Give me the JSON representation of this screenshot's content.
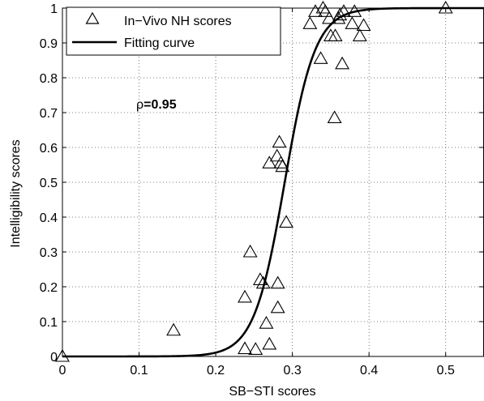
{
  "chart_data": {
    "type": "scatter",
    "xlabel": "SB−STI scores",
    "ylabel": "Intelligibility scores",
    "xlim": [
      0,
      0.55
    ],
    "ylim": [
      0,
      1
    ],
    "x_ticks": [
      "0",
      "0.1",
      "0.2",
      "0.3",
      "0.4",
      "0.5"
    ],
    "y_ticks": [
      "0",
      "0.1",
      "0.2",
      "0.3",
      "0.4",
      "0.5",
      "0.6",
      "0.7",
      "0.8",
      "0.9",
      "1"
    ],
    "grid": true,
    "legend_position": "top-left",
    "annotation": {
      "prefix": "ρ",
      "value": "=0.95"
    },
    "series": [
      {
        "name": "In−Vivo NH scores",
        "marker": "triangle-open",
        "points": [
          {
            "x": 0.0,
            "y": 0.0
          },
          {
            "x": 0.145,
            "y": 0.075
          },
          {
            "x": 0.238,
            "y": 0.022
          },
          {
            "x": 0.238,
            "y": 0.17
          },
          {
            "x": 0.245,
            "y": 0.3
          },
          {
            "x": 0.252,
            "y": 0.02
          },
          {
            "x": 0.258,
            "y": 0.22
          },
          {
            "x": 0.262,
            "y": 0.21
          },
          {
            "x": 0.266,
            "y": 0.095
          },
          {
            "x": 0.27,
            "y": 0.035
          },
          {
            "x": 0.27,
            "y": 0.555
          },
          {
            "x": 0.28,
            "y": 0.575
          },
          {
            "x": 0.281,
            "y": 0.21
          },
          {
            "x": 0.281,
            "y": 0.14
          },
          {
            "x": 0.283,
            "y": 0.615
          },
          {
            "x": 0.285,
            "y": 0.555
          },
          {
            "x": 0.287,
            "y": 0.545
          },
          {
            "x": 0.292,
            "y": 0.385
          },
          {
            "x": 0.323,
            "y": 0.955
          },
          {
            "x": 0.33,
            "y": 0.99
          },
          {
            "x": 0.337,
            "y": 0.855
          },
          {
            "x": 0.34,
            "y": 1.0
          },
          {
            "x": 0.343,
            "y": 0.99
          },
          {
            "x": 0.348,
            "y": 0.97
          },
          {
            "x": 0.35,
            "y": 0.92
          },
          {
            "x": 0.355,
            "y": 0.685
          },
          {
            "x": 0.356,
            "y": 0.92
          },
          {
            "x": 0.36,
            "y": 0.97
          },
          {
            "x": 0.362,
            "y": 0.98
          },
          {
            "x": 0.365,
            "y": 0.84
          },
          {
            "x": 0.367,
            "y": 0.99
          },
          {
            "x": 0.378,
            "y": 0.955
          },
          {
            "x": 0.381,
            "y": 0.99
          },
          {
            "x": 0.388,
            "y": 0.92
          },
          {
            "x": 0.393,
            "y": 0.95
          },
          {
            "x": 0.5,
            "y": 1.0
          }
        ]
      },
      {
        "name": "Fitting curve",
        "type": "line",
        "model": "logistic",
        "midpoint_x": 0.29,
        "slope": 50,
        "x_range": [
          0,
          0.55
        ]
      }
    ]
  }
}
